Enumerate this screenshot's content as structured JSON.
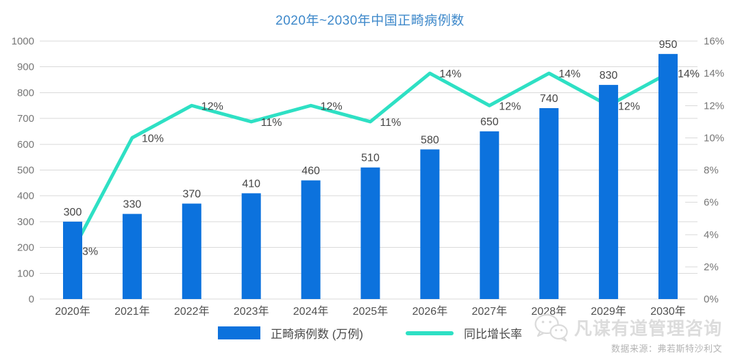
{
  "chart_data": {
    "type": "bar",
    "title": "2020年~2030年中国正畸病例数",
    "categories": [
      "2020年",
      "2021年",
      "2022年",
      "2023年",
      "2024年",
      "2025年",
      "2026年",
      "2027年",
      "2028年",
      "2029年",
      "2030年"
    ],
    "series": [
      {
        "name": "正畸病例数 (万例)",
        "type": "bar",
        "axis": "left",
        "values": [
          300,
          330,
          370,
          410,
          460,
          510,
          580,
          650,
          740,
          830,
          950
        ],
        "labels": [
          "300",
          "330",
          "370",
          "410",
          "460",
          "510",
          "580",
          "650",
          "740",
          "830",
          "950"
        ]
      },
      {
        "name": "同比增长率",
        "type": "line",
        "axis": "right",
        "values": [
          3,
          10,
          12,
          11,
          12,
          11,
          14,
          12,
          14,
          12,
          14
        ],
        "labels": [
          "3%",
          "10%",
          "12%",
          "11%",
          "12%",
          "11%",
          "14%",
          "12%",
          "14%",
          "12%",
          "14%"
        ]
      }
    ],
    "left_axis": {
      "min": 0,
      "max": 1000,
      "step": 100,
      "ticks": [
        "0",
        "100",
        "200",
        "300",
        "400",
        "500",
        "600",
        "700",
        "800",
        "900",
        "1000"
      ]
    },
    "right_axis": {
      "min": 0,
      "max": 16,
      "step": 2,
      "suffix": "%",
      "ticks": [
        "0%",
        "2%",
        "4%",
        "6%",
        "8%",
        "10%",
        "12%",
        "14%",
        "16%"
      ]
    },
    "grid": true,
    "legend_position": "bottom"
  },
  "watermark": {
    "icon": "wechat-icon",
    "brand": "凡谋有道管理咨询",
    "source_label": "数据来源：弗若斯特沙利文"
  },
  "colors": {
    "bar": "#0c72dd",
    "line": "#2ee0c4",
    "title": "#3d88ca",
    "grid": "#d9d9d9",
    "axis_text": "#767676",
    "data_label_text": "#454545",
    "category_text": "#4f4f4f",
    "legend_text": "#4a4a4a",
    "watermark_text": "#dcdcdc",
    "source_text": "#b3b3b3",
    "background": "#ffffff"
  }
}
